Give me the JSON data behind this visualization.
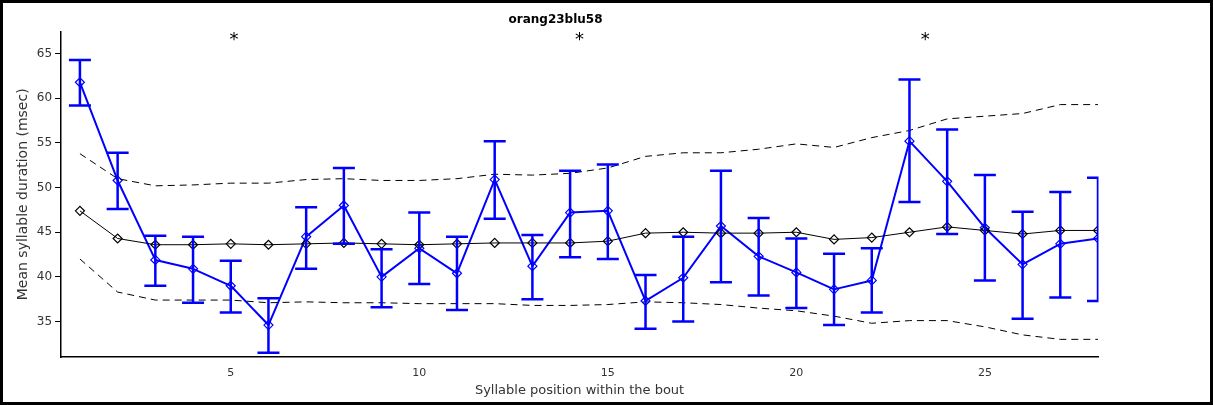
{
  "chart_data": {
    "type": "line",
    "title": "orang23blu58",
    "xlabel": "Syllable position within the bout",
    "ylabel": "Mean syllable duration (msec)",
    "x": [
      1,
      2,
      3,
      4,
      5,
      6,
      7,
      8,
      9,
      10,
      11,
      12,
      13,
      14,
      15,
      16,
      17,
      18,
      19,
      20,
      21,
      22,
      23,
      24,
      25,
      26,
      27,
      28
    ],
    "xlim": [
      0.5,
      28
    ],
    "xticks": [
      5,
      10,
      15,
      20,
      25
    ],
    "ylim": [
      31,
      67.5
    ],
    "yticks": [
      35,
      40,
      45,
      50,
      55,
      60,
      65
    ],
    "grid": false,
    "legend": false,
    "series": [
      {
        "color": "#000000",
        "marker": "diamond",
        "line_style": "solid",
        "values": [
          47.4,
          44.3,
          43.6,
          43.6,
          43.7,
          43.6,
          43.7,
          43.8,
          43.7,
          43.6,
          43.7,
          43.8,
          43.8,
          43.8,
          44.0,
          44.9,
          45.0,
          44.9,
          44.9,
          45.0,
          44.2,
          44.4,
          45.0,
          45.6,
          45.2,
          44.8,
          45.2,
          45.2
        ]
      },
      {
        "color": "#000000",
        "marker": "none",
        "line_style": "dashed",
        "values": [
          53.8,
          51.0,
          50.2,
          50.3,
          50.5,
          50.5,
          50.9,
          51.0,
          50.8,
          50.8,
          51.0,
          51.5,
          51.4,
          51.6,
          52.2,
          53.5,
          53.9,
          53.9,
          54.3,
          54.9,
          54.5,
          55.6,
          56.4,
          57.7,
          58.0,
          58.3,
          59.3,
          59.3
        ]
      },
      {
        "color": "#000000",
        "marker": "none",
        "line_style": "dashed",
        "values": [
          42.0,
          38.3,
          37.4,
          37.4,
          37.4,
          37.1,
          37.2,
          37.1,
          37.1,
          37.0,
          37.0,
          37.0,
          36.8,
          36.8,
          36.9,
          37.2,
          37.1,
          36.9,
          36.5,
          36.2,
          35.6,
          34.8,
          35.1,
          35.1,
          34.4,
          33.5,
          33.0,
          33.0
        ]
      },
      {
        "color": "#0000ff",
        "marker": "diamond",
        "line_style": "solid",
        "values": [
          61.8,
          50.8,
          41.9,
          40.9,
          39.0,
          34.6,
          44.5,
          48.0,
          40.0,
          43.2,
          40.4,
          50.9,
          41.2,
          47.2,
          47.4,
          37.3,
          39.9,
          45.7,
          42.3,
          40.5,
          38.6,
          39.6,
          55.2,
          50.7,
          45.5,
          41.4,
          43.7,
          44.3
        ],
        "errors": [
          [
            59.2,
            64.3
          ],
          [
            47.6,
            53.9
          ],
          [
            39.0,
            44.6
          ],
          [
            37.1,
            44.5
          ],
          [
            36.0,
            41.8
          ],
          [
            31.5,
            37.6
          ],
          [
            40.9,
            47.8
          ],
          [
            43.7,
            52.2
          ],
          [
            36.6,
            43.1
          ],
          [
            39.2,
            47.2
          ],
          [
            36.3,
            44.5
          ],
          [
            46.5,
            55.2
          ],
          [
            37.5,
            44.7
          ],
          [
            42.2,
            51.9
          ],
          [
            42.0,
            52.6
          ],
          [
            34.2,
            40.2
          ],
          [
            35.0,
            44.5
          ],
          [
            39.4,
            51.9
          ],
          [
            37.9,
            46.6
          ],
          [
            36.5,
            44.3
          ],
          [
            34.6,
            42.6
          ],
          [
            36.0,
            43.2
          ],
          [
            48.4,
            62.1
          ],
          [
            44.8,
            56.5
          ],
          [
            39.6,
            51.4
          ],
          [
            35.3,
            47.3
          ],
          [
            37.7,
            49.5
          ],
          [
            37.3,
            51.1
          ]
        ]
      }
    ],
    "annotations": [
      "*",
      "*",
      "*"
    ]
  }
}
